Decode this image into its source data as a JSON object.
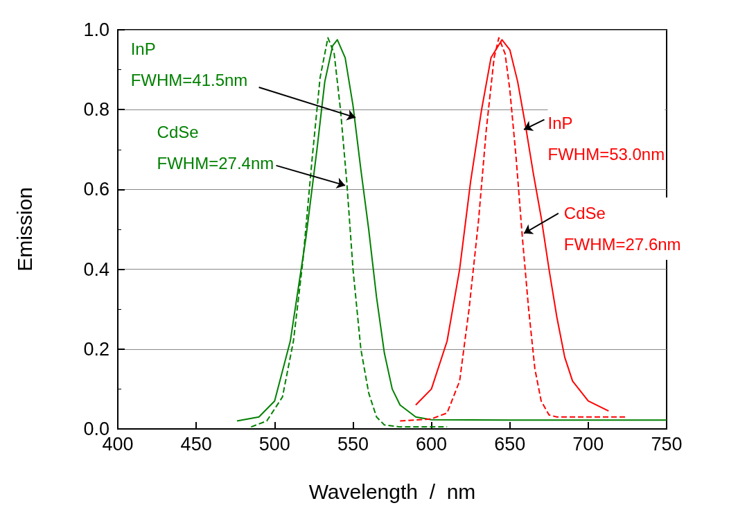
{
  "chart_data": {
    "type": "line",
    "xlabel": "Wavelength  /  nm",
    "ylabel": "Emission",
    "xlim": [
      400,
      750
    ],
    "xticks": [
      400,
      450,
      500,
      550,
      600,
      650,
      700,
      750
    ],
    "ylim": [
      0,
      1
    ],
    "yticks": [
      {
        "value": 0,
        "label": "0.0"
      },
      0.2,
      0.4,
      0.6,
      0.8,
      {
        "value": 1,
        "label": "1.0"
      }
    ],
    "grid": "y",
    "marker": "none",
    "series": [
      {
        "color": "#008000",
        "line_style": "solid",
        "x": [
          476,
          490,
          500,
          510,
          520,
          527,
          532,
          537,
          540,
          545,
          550,
          555,
          560,
          565,
          570,
          575,
          580,
          590,
          600,
          650,
          750
        ],
        "values": [
          0.02,
          0.03,
          0.07,
          0.22,
          0.48,
          0.7,
          0.87,
          0.96,
          0.975,
          0.93,
          0.81,
          0.65,
          0.5,
          0.33,
          0.19,
          0.1,
          0.06,
          0.03,
          0.023,
          0.022,
          0.022
        ]
      },
      {
        "color": "#008000",
        "line_style": "dashed",
        "x": [
          485,
          495,
          505,
          512,
          518,
          524,
          529,
          534,
          538,
          542,
          546,
          550,
          555,
          560,
          565,
          570,
          580,
          610
        ],
        "values": [
          0.005,
          0.02,
          0.08,
          0.22,
          0.42,
          0.68,
          0.88,
          0.98,
          0.94,
          0.8,
          0.62,
          0.4,
          0.2,
          0.09,
          0.03,
          0.01,
          0.005,
          0.005
        ]
      },
      {
        "color": "#ff0000",
        "line_style": "solid",
        "x": [
          590,
          600,
          610,
          618,
          625,
          632,
          638,
          645,
          650,
          655,
          660,
          665,
          670,
          675,
          680,
          685,
          690,
          700,
          713
        ],
        "values": [
          0.06,
          0.1,
          0.22,
          0.4,
          0.62,
          0.8,
          0.93,
          0.975,
          0.95,
          0.87,
          0.76,
          0.64,
          0.53,
          0.4,
          0.28,
          0.18,
          0.12,
          0.07,
          0.045
        ]
      },
      {
        "color": "#ff0000",
        "line_style": "dashed",
        "x": [
          580,
          600,
          610,
          618,
          624,
          630,
          635,
          640,
          643,
          647,
          650,
          654,
          658,
          662,
          666,
          670,
          675,
          680,
          725
        ],
        "values": [
          0.02,
          0.025,
          0.04,
          0.12,
          0.3,
          0.52,
          0.75,
          0.93,
          0.98,
          0.94,
          0.85,
          0.68,
          0.48,
          0.3,
          0.15,
          0.07,
          0.035,
          0.03,
          0.03
        ]
      }
    ],
    "annotations": [
      {
        "text": "InP\nFWHM=41.5nm",
        "x": 551.6,
        "y": 0.78
      },
      {
        "text": "CdSe\nFWHM=27.4nm",
        "x": 545,
        "y": 0.61
      },
      {
        "text": "InP\nFWHM=53.0nm",
        "x": 659,
        "y": 0.75
      },
      {
        "text": "CdSe\nFWHM=27.6nm",
        "x": 659,
        "y": 0.49
      }
    ]
  }
}
